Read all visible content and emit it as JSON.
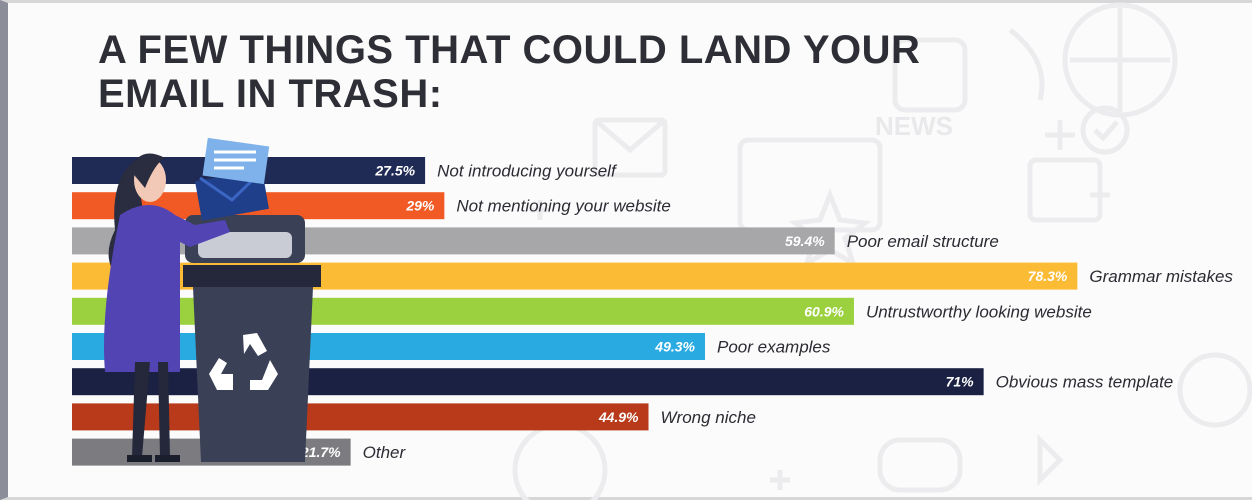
{
  "title": {
    "line1": "A FEW THINGS THAT COULD LAND YOUR",
    "line2": "EMAIL IN TRASH:"
  },
  "background_text": "NEWS",
  "colors": {
    "navy": "#1f2a55",
    "orange": "#f15a24",
    "gray": "#a7a7aa",
    "yellow": "#fbbb35",
    "green": "#9bd13f",
    "blue": "#29abe2",
    "dark_navy": "#1b2143",
    "rust": "#b83a1b",
    "slate": "#7c7c80"
  },
  "chart_data": {
    "type": "bar",
    "orientation": "horizontal",
    "title": "A FEW THINGS THAT COULD LAND YOUR EMAIL IN TRASH:",
    "xlabel": "",
    "ylabel": "",
    "xlim": [
      0,
      100
    ],
    "grid": false,
    "legend": "none",
    "categories": [
      "Not introducing yourself",
      "Not mentioning your website",
      "Poor email structure",
      "Grammar mistakes",
      "Untrustworthy looking website",
      "Poor examples",
      "Obvious mass template",
      "Wrong niche",
      "Other"
    ],
    "values": [
      27.5,
      29,
      59.4,
      78.3,
      60.9,
      49.3,
      71,
      44.9,
      21.7
    ],
    "value_labels": [
      "27.5%",
      "29%",
      "59.4%",
      "78.3%",
      "60.9%",
      "49.3%",
      "71%",
      "44.9%",
      "21.7%"
    ],
    "bar_colors": [
      "#1f2a55",
      "#f15a24",
      "#a7a7aa",
      "#fbbb35",
      "#9bd13f",
      "#29abe2",
      "#1b2143",
      "#b83a1b",
      "#7c7c80"
    ]
  }
}
